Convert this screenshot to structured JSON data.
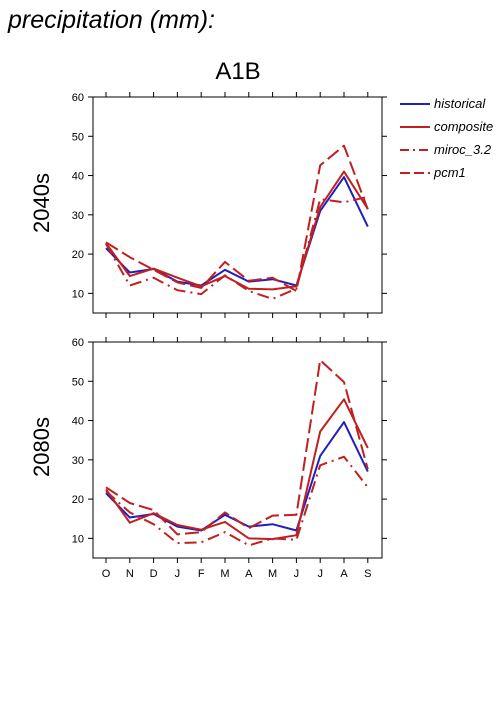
{
  "title": "precipitation (mm):",
  "chart_data": {
    "type": "line",
    "scenario": "A1B",
    "months": [
      "O",
      "N",
      "D",
      "J",
      "F",
      "M",
      "A",
      "M",
      "J",
      "J",
      "A",
      "S"
    ],
    "legend_placement": "top-right",
    "grid": false,
    "series_styles": [
      {
        "name": "historical",
        "color": "#2020c0",
        "dash": "solid"
      },
      {
        "name": "composite",
        "color": "#c02020",
        "dash": "solid"
      },
      {
        "name": "miroc_3.2",
        "color": "#c02020",
        "dash": "dashdot"
      },
      {
        "name": "pcm1",
        "color": "#c02020",
        "dash": "dashed"
      }
    ],
    "panels": [
      {
        "period": "2040s",
        "ylim": [
          5,
          60
        ],
        "yticks": [
          10,
          20,
          30,
          40,
          50,
          60
        ],
        "series": [
          {
            "name": "historical",
            "values": [
              21.5,
              15.3,
              16.2,
              13.0,
              12.0,
              16.0,
              13.0,
              13.6,
              12.0,
              31.0,
              39.6,
              27.0
            ]
          },
          {
            "name": "composite",
            "values": [
              22.8,
              14.4,
              16.3,
              14.0,
              11.8,
              14.4,
              11.2,
              11.0,
              11.8,
              32.0,
              41.0,
              31.5
            ]
          },
          {
            "name": "miroc_3.2",
            "values": [
              22.6,
              12.0,
              14.0,
              10.8,
              9.8,
              14.6,
              10.6,
              8.6,
              11.2,
              34.0,
              33.2,
              34.6
            ]
          },
          {
            "name": "pcm1",
            "values": [
              23.0,
              19.2,
              16.0,
              12.8,
              11.4,
              18.0,
              13.2,
              14.0,
              10.6,
              42.6,
              47.6,
              31.4
            ]
          }
        ]
      },
      {
        "period": "2080s",
        "ylim": [
          5,
          60
        ],
        "yticks": [
          10,
          20,
          30,
          40,
          50,
          60
        ],
        "series": [
          {
            "name": "historical",
            "values": [
              21.5,
              15.3,
              16.2,
              13.0,
              12.0,
              16.0,
              13.0,
              13.6,
              12.0,
              31.0,
              39.6,
              27.0
            ]
          },
          {
            "name": "composite",
            "values": [
              22.5,
              14.0,
              16.4,
              13.4,
              12.2,
              14.2,
              10.0,
              9.8,
              10.8,
              37.2,
              45.4,
              33.0
            ]
          },
          {
            "name": "miroc_3.2",
            "values": [
              22.0,
              16.6,
              13.6,
              8.8,
              9.0,
              11.6,
              8.2,
              10.0,
              9.6,
              28.6,
              30.8,
              23.0
            ]
          },
          {
            "name": "pcm1",
            "values": [
              23.0,
              19.0,
              17.2,
              11.0,
              11.6,
              16.6,
              12.6,
              15.8,
              16.0,
              55.4,
              49.8,
              27.6
            ]
          }
        ]
      }
    ]
  }
}
